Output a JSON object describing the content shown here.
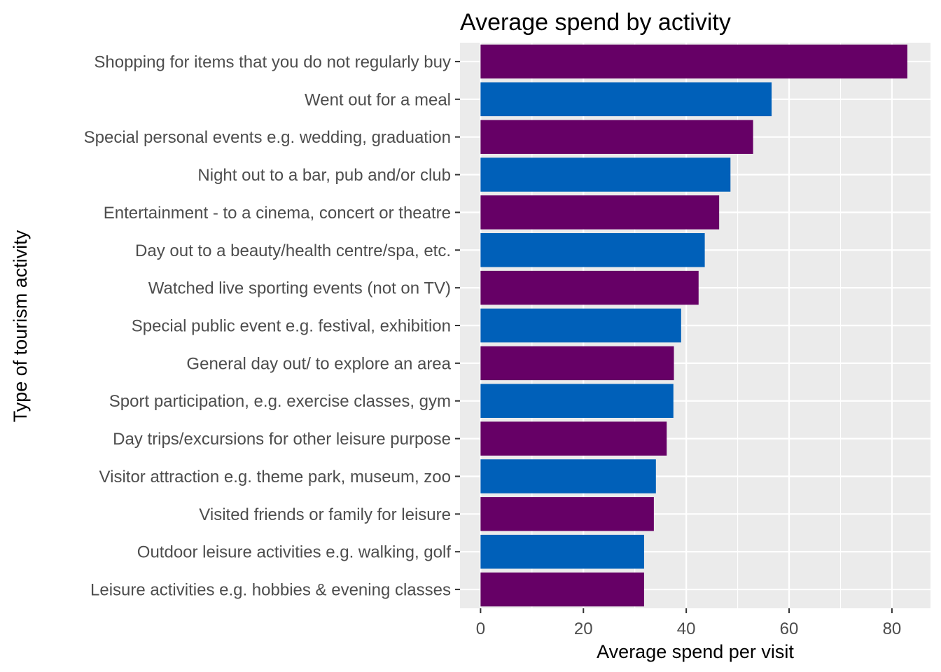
{
  "chart_data": {
    "type": "bar",
    "orientation": "horizontal",
    "title": "Average spend by activity",
    "xlabel": "Average spend per visit",
    "ylabel": "Type of tourism activity",
    "xlim": [
      -4,
      87.5
    ],
    "xticks": [
      0,
      20,
      40,
      60,
      80
    ],
    "grid": true,
    "legend": "none",
    "colors": {
      "purple": "#660066",
      "blue": "#0060b9",
      "panel": "#ebebeb",
      "grid": "#ffffff"
    },
    "categories": [
      "Shopping for items that you do not regularly buy",
      "Went out for a meal",
      "Special personal events e.g. wedding, graduation",
      "Night out to a bar, pub and/or club",
      "Entertainment - to a cinema, concert or theatre",
      "Day out to a beauty/health centre/spa, etc.",
      "Watched live sporting events (not on TV)",
      "Special public event e.g. festival, exhibition",
      "General day out/ to explore an area",
      "Sport participation, e.g. exercise classes, gym",
      "Day trips/excursions for other leisure purpose",
      "Visitor attraction e.g. theme park, museum, zoo",
      "Visited friends or family for leisure",
      "Outdoor leisure activities e.g. walking, golf",
      "Leisure activities e.g. hobbies & evening classes"
    ],
    "values": [
      83.0,
      56.6,
      53.0,
      48.6,
      46.4,
      43.6,
      42.4,
      39.0,
      37.6,
      37.5,
      36.2,
      34.1,
      33.7,
      31.8,
      31.8
    ],
    "bar_colors": [
      "purple",
      "blue",
      "purple",
      "blue",
      "purple",
      "blue",
      "purple",
      "blue",
      "purple",
      "blue",
      "purple",
      "blue",
      "purple",
      "blue",
      "purple"
    ]
  }
}
